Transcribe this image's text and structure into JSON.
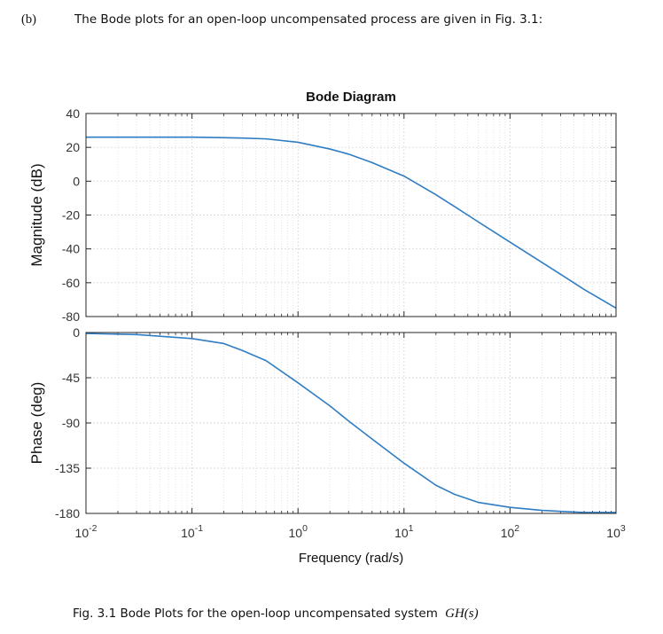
{
  "question": {
    "label": "(b)",
    "text": "The Bode plots for an open-loop uncompensated process are given in Fig. 3.1:"
  },
  "caption": {
    "text": "Fig. 3.1 Bode Plots for the open-loop uncompensated system",
    "math": "GH(s)"
  },
  "colors": {
    "line": "#2f7dc4",
    "grid": "#d9d9d9",
    "axis": "#262626"
  },
  "chart_data": [
    {
      "type": "line",
      "title": "Bode Diagram",
      "ylabel": "Magnitude (dB)",
      "xlabel": "",
      "xscale": "log",
      "xlim": [
        0.01,
        1000
      ],
      "ylim": [
        -80,
        40
      ],
      "yticks": [
        "40",
        "20",
        "0",
        "-20",
        "-40",
        "-60",
        "-80"
      ],
      "ytick_values": [
        40,
        20,
        0,
        -20,
        -40,
        -60,
        -80
      ],
      "grid": true,
      "series": [
        {
          "name": "Magnitude",
          "x": [
            0.01,
            0.03,
            0.1,
            0.3,
            0.5,
            1,
            2,
            3,
            5,
            10,
            20,
            30,
            50,
            100,
            200,
            300,
            500,
            1000
          ],
          "y": [
            26,
            26,
            26,
            25.5,
            25,
            23,
            19,
            16,
            11,
            3,
            -8,
            -15,
            -24,
            -36,
            -48,
            -55,
            -64,
            -75
          ]
        }
      ]
    },
    {
      "type": "line",
      "title": "",
      "ylabel": "Phase (deg)",
      "xlabel": "Frequency  (rad/s)",
      "xscale": "log",
      "xlim": [
        0.01,
        1000
      ],
      "ylim": [
        -180,
        0
      ],
      "yticks": [
        "0",
        "-45",
        "-90",
        "-135",
        "-180"
      ],
      "ytick_values": [
        0,
        -45,
        -90,
        -135,
        -180
      ],
      "xticks": [
        {
          "base": "10",
          "exp": "-2"
        },
        {
          "base": "10",
          "exp": "-1"
        },
        {
          "base": "10",
          "exp": "0"
        },
        {
          "base": "10",
          "exp": "1"
        },
        {
          "base": "10",
          "exp": "2"
        },
        {
          "base": "10",
          "exp": "3"
        }
      ],
      "xtick_values": [
        0.01,
        0.1,
        1,
        10,
        100,
        1000
      ],
      "grid": true,
      "series": [
        {
          "name": "Phase",
          "x": [
            0.01,
            0.03,
            0.1,
            0.2,
            0.3,
            0.5,
            1,
            2,
            3,
            5,
            10,
            20,
            30,
            50,
            100,
            200,
            300,
            500,
            1000
          ],
          "y": [
            -1,
            -2,
            -6,
            -11,
            -18,
            -28,
            -50,
            -73,
            -88,
            -106,
            -130,
            -152,
            -161,
            -169,
            -174,
            -177,
            -178,
            -179,
            -179
          ]
        }
      ]
    }
  ]
}
